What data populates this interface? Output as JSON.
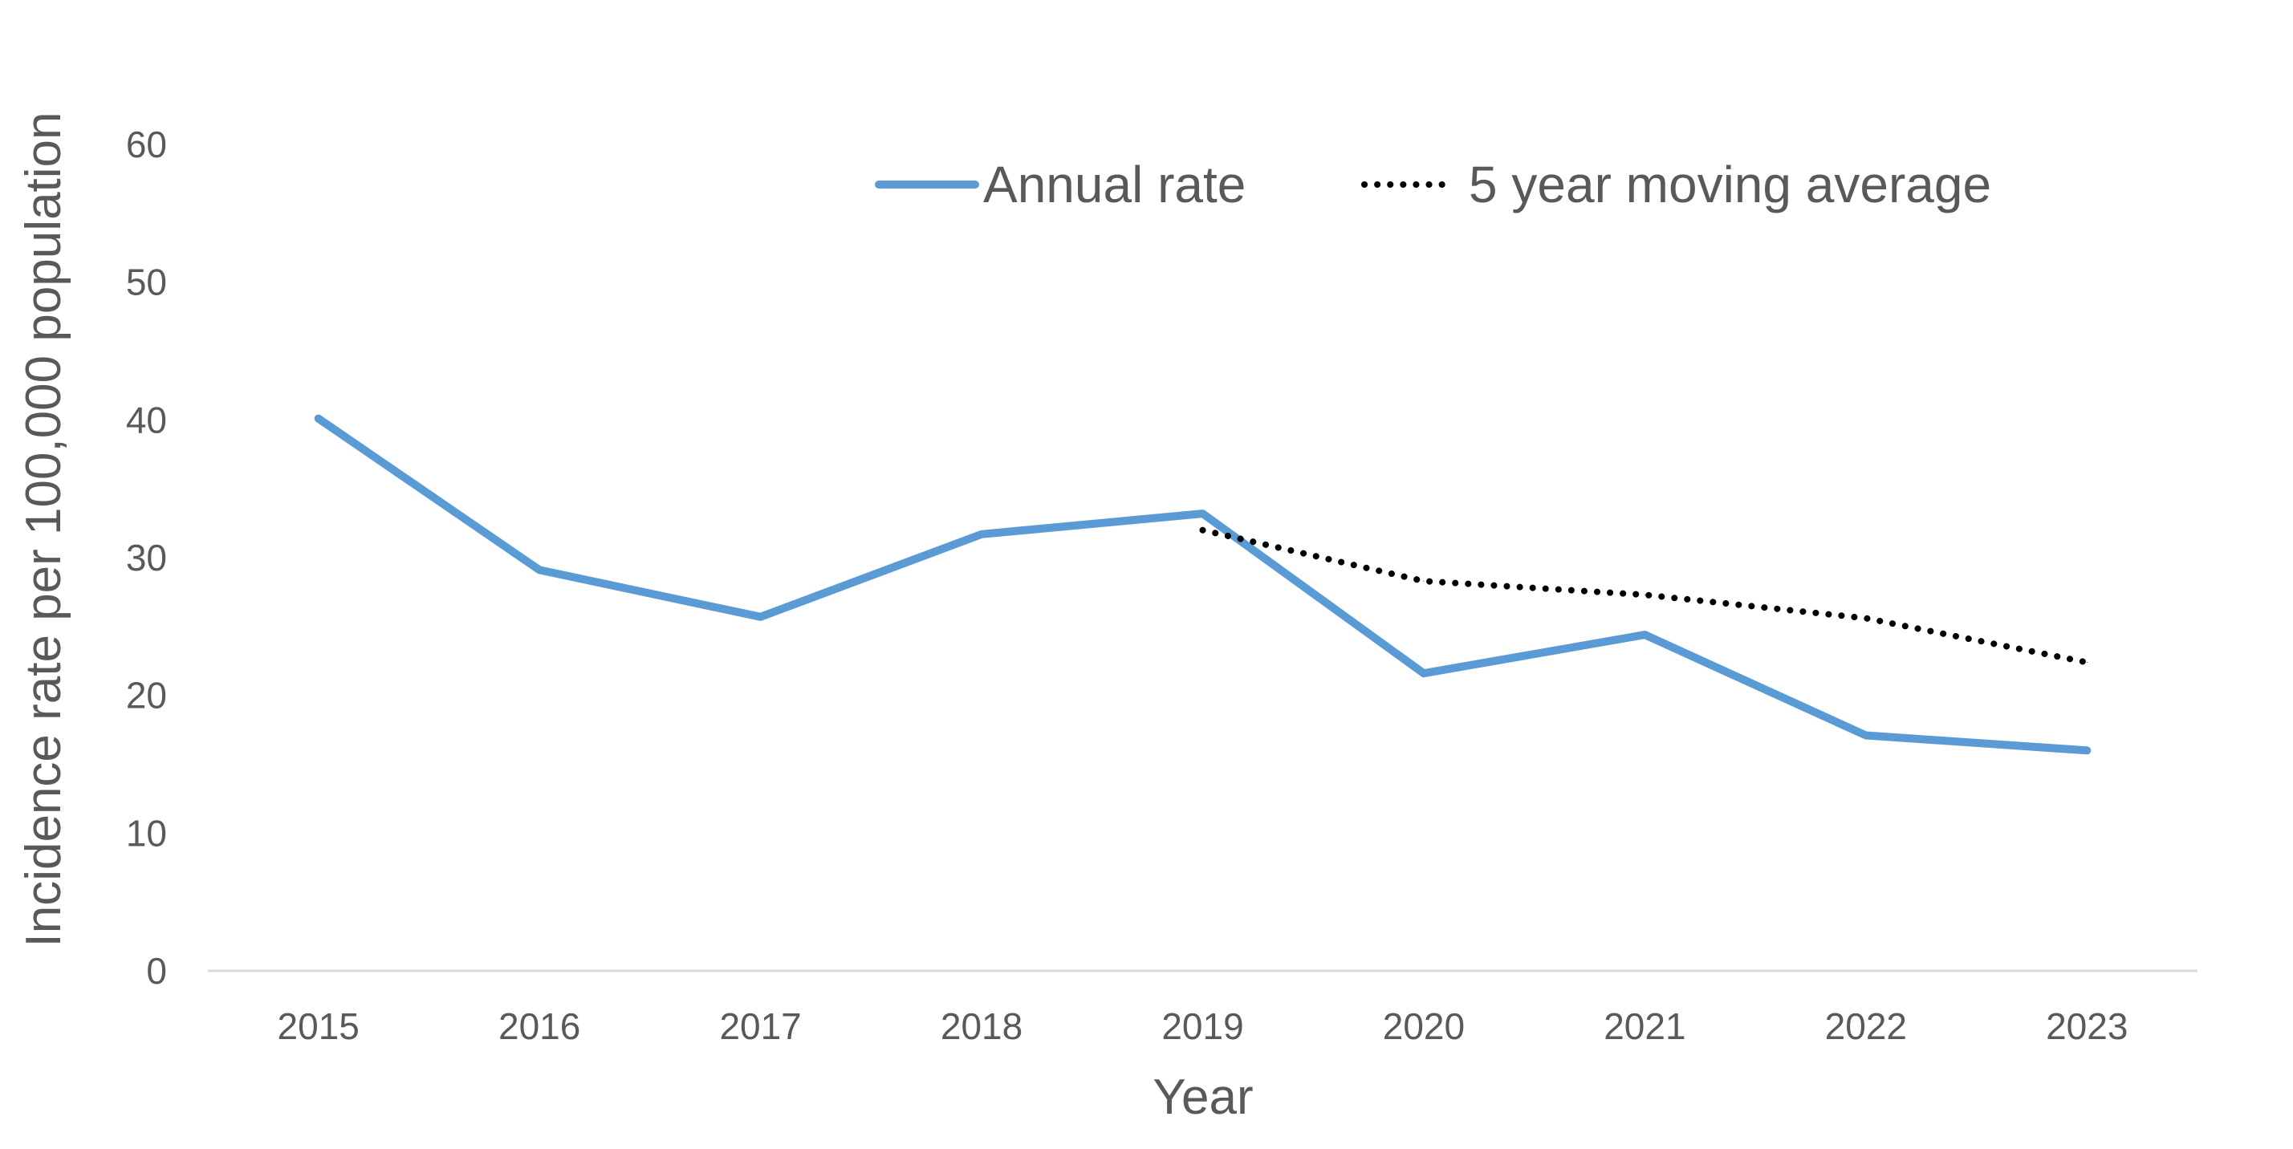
{
  "chart_data": {
    "type": "line",
    "title": "",
    "xlabel": "Year",
    "ylabel": "Incidence rate per 100,000 population",
    "categories": [
      "2015",
      "2016",
      "2017",
      "2018",
      "2019",
      "2020",
      "2021",
      "2022",
      "2023"
    ],
    "yticks": [
      "0",
      "10",
      "20",
      "30",
      "40",
      "50",
      "60"
    ],
    "ylim": [
      0,
      60
    ],
    "grid": false,
    "legend_position": "top",
    "series": [
      {
        "name": "Annual rate",
        "style": "solid",
        "color": "#5B9BD5",
        "values": [
          40.1,
          29.1,
          25.7,
          31.7,
          33.2,
          21.6,
          24.4,
          17.1,
          16.0
        ]
      },
      {
        "name": "5 year moving average",
        "style": "dotted",
        "color": "#000000",
        "values": [
          null,
          null,
          null,
          null,
          32.0,
          28.3,
          27.3,
          25.6,
          22.4
        ]
      }
    ]
  },
  "colors": {
    "axis_line": "#D9D9D9",
    "text": "#595959"
  }
}
